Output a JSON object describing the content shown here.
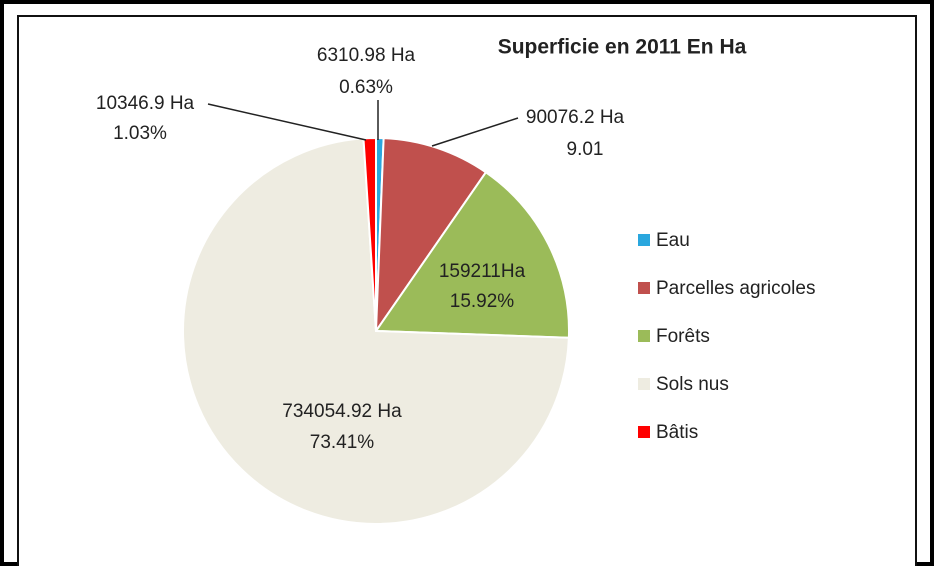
{
  "chart_data": {
    "type": "pie",
    "title": "Superficie en 2011 En Ha",
    "categories": [
      "Eau",
      "Parcelles agricoles",
      "Forêts",
      "Sols nus",
      "Bâtis"
    ],
    "values": [
      6310.98,
      90076.2,
      159211,
      734054.92,
      10346.9
    ],
    "value_labels": [
      "6310.98 Ha",
      "90076.2 Ha",
      "159211Ha",
      "734054.92 Ha",
      "10346.9 Ha"
    ],
    "percentages": [
      0.63,
      9.01,
      15.92,
      73.41,
      1.03
    ],
    "percentage_labels": [
      "0.63%",
      "9.01",
      "15.92%",
      "73.41%",
      "1.03%"
    ],
    "colors": [
      "#2aa7de",
      "#c0504d",
      "#9bbb59",
      "#eeece1",
      "#ff0000"
    ],
    "legend": "right"
  }
}
